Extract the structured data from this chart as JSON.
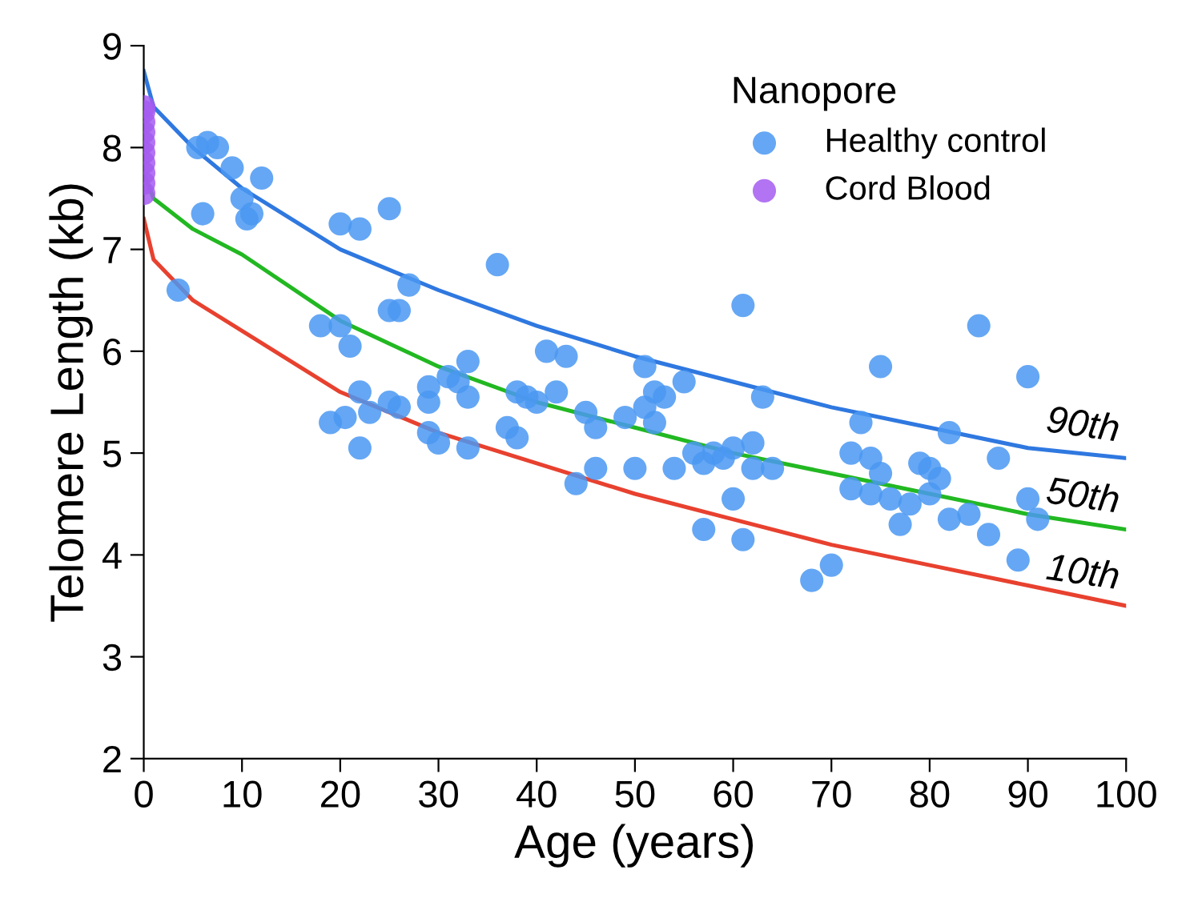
{
  "chart_data": {
    "type": "scatter",
    "xlabel": "Age (years)",
    "ylabel": "Telomere Length (kb)",
    "legend_title": "Nanopore",
    "legend": "top right",
    "grid": false,
    "marker": "circle",
    "xlim": [
      0,
      100
    ],
    "xticks": [
      0,
      10,
      20,
      30,
      40,
      50,
      60,
      70,
      80,
      90,
      100
    ],
    "ylim": [
      2,
      9
    ],
    "yticks": [
      2,
      3,
      4,
      5,
      6,
      7,
      8,
      9
    ],
    "series": [
      {
        "name": "Healthy control",
        "color": "#4a98f2",
        "x": [
          3.5,
          5.5,
          6.5,
          7.5,
          6,
          9,
          10,
          10.5,
          11,
          12,
          18,
          19,
          20,
          20.5,
          20,
          21,
          22,
          22,
          22,
          23,
          25,
          25,
          25,
          26,
          26,
          27,
          29,
          29,
          29,
          30,
          31,
          32,
          33,
          33,
          33,
          36,
          37,
          38,
          38,
          39,
          40,
          41,
          42,
          43,
          44,
          45,
          46,
          46,
          49,
          50,
          51,
          51,
          52,
          52,
          53,
          54,
          55,
          56,
          57,
          57,
          58,
          59,
          60,
          60,
          61,
          61,
          62,
          62,
          63,
          64,
          68,
          70,
          72,
          72,
          73,
          74,
          74,
          75,
          75,
          76,
          77,
          78,
          79,
          80,
          80,
          81,
          82,
          82,
          84,
          85,
          86,
          87,
          89,
          90,
          90,
          91
        ],
        "values": [
          6.6,
          8.0,
          8.05,
          8.0,
          7.35,
          7.8,
          7.5,
          7.3,
          7.35,
          7.7,
          6.25,
          5.3,
          7.25,
          5.35,
          6.25,
          6.05,
          7.2,
          5.6,
          5.05,
          5.4,
          7.4,
          6.4,
          5.5,
          6.4,
          5.45,
          6.65,
          5.65,
          5.5,
          5.2,
          5.1,
          5.75,
          5.7,
          5.9,
          5.55,
          5.05,
          6.85,
          5.25,
          5.6,
          5.15,
          5.55,
          5.5,
          6.0,
          5.6,
          5.95,
          4.7,
          5.4,
          5.25,
          4.85,
          5.35,
          4.85,
          5.85,
          5.45,
          5.3,
          5.6,
          5.55,
          4.85,
          5.7,
          5.0,
          4.25,
          4.9,
          5.0,
          4.95,
          4.55,
          5.05,
          6.45,
          4.15,
          4.85,
          5.1,
          5.55,
          4.85,
          3.75,
          3.9,
          5.0,
          4.65,
          5.3,
          4.95,
          4.6,
          5.85,
          4.8,
          4.55,
          4.3,
          4.5,
          4.9,
          4.85,
          4.6,
          4.75,
          5.2,
          4.35,
          4.4,
          6.25,
          4.2,
          4.95,
          3.95,
          5.75,
          4.55,
          4.35
        ]
      },
      {
        "name": "Cord Blood",
        "color": "#a45cf0",
        "x": [
          0,
          0,
          0,
          0,
          0,
          0,
          0,
          0,
          0,
          0
        ],
        "values": [
          7.55,
          7.65,
          7.75,
          7.85,
          7.95,
          8.05,
          8.15,
          8.25,
          8.35,
          8.4
        ]
      },
      {
        "type": "line",
        "name": "90th",
        "color": "#2f78e0",
        "marker": "none",
        "x": [
          0,
          1,
          5,
          10,
          20,
          30,
          40,
          50,
          60,
          70,
          80,
          90,
          100
        ],
        "values": [
          8.75,
          8.4,
          8.0,
          7.6,
          7.0,
          6.6,
          6.25,
          5.95,
          5.7,
          5.45,
          5.25,
          5.05,
          4.95
        ]
      },
      {
        "type": "line",
        "name": "50th",
        "color": "#22b822",
        "marker": "none",
        "x": [
          0,
          1,
          5,
          10,
          20,
          30,
          40,
          50,
          60,
          70,
          80,
          90,
          100
        ],
        "values": [
          7.75,
          7.5,
          7.2,
          6.95,
          6.3,
          5.85,
          5.5,
          5.25,
          5.0,
          4.8,
          4.6,
          4.4,
          4.25
        ]
      },
      {
        "type": "line",
        "name": "10th",
        "color": "#e8412f",
        "marker": "none",
        "x": [
          0,
          1,
          5,
          10,
          20,
          30,
          40,
          50,
          60,
          70,
          80,
          90,
          100
        ],
        "values": [
          7.3,
          6.9,
          6.5,
          6.2,
          5.6,
          5.2,
          4.9,
          4.6,
          4.35,
          4.1,
          3.9,
          3.7,
          3.5
        ]
      }
    ]
  }
}
